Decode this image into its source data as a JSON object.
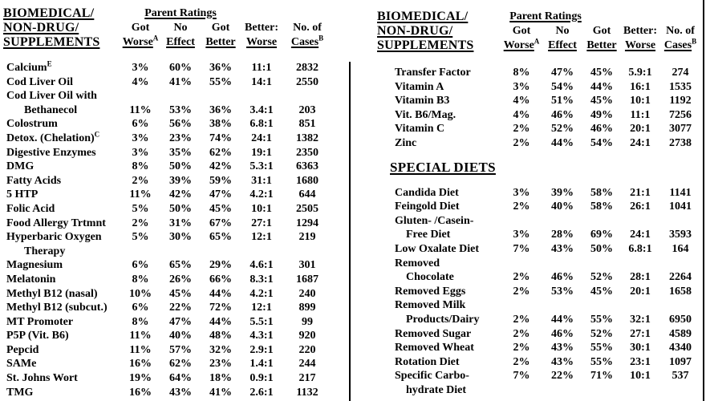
{
  "page": {
    "background": "#ffffff",
    "text_color": "#000000"
  },
  "left_table": {
    "title_lines": [
      "BIOMEDICAL/",
      "NON-DRUG/",
      "SUPPLEMENTS"
    ],
    "parent_ratings_label": "Parent Ratings",
    "columns": [
      {
        "l1": "Got",
        "l2": "Worse",
        "sup": "A"
      },
      {
        "l1": "No",
        "l2": "Effect",
        "sup": ""
      },
      {
        "l1": "Got",
        "l2": "Better",
        "sup": ""
      },
      {
        "l1": "Better:",
        "l2": "Worse",
        "sup": ""
      },
      {
        "l1": "No. of",
        "l2": "Cases",
        "sup": "B"
      }
    ],
    "rows": [
      {
        "label": "Calcium",
        "sup": "E",
        "ind": false,
        "worse": "3%",
        "effect": "60%",
        "better": "36%",
        "ratio": "11:1",
        "cases": "2832"
      },
      {
        "label": "Cod Liver Oil",
        "sup": "",
        "ind": false,
        "worse": "4%",
        "effect": "41%",
        "better": "55%",
        "ratio": "14:1",
        "cases": "2550"
      },
      {
        "label": "Cod Liver Oil with",
        "sup": "",
        "ind": false,
        "worse": "",
        "effect": "",
        "better": "",
        "ratio": "",
        "cases": ""
      },
      {
        "label": "Bethanecol",
        "sup": "",
        "ind": true,
        "worse": "11%",
        "effect": "53%",
        "better": "36%",
        "ratio": "3.4:1",
        "cases": "203"
      },
      {
        "label": "Colostrum",
        "sup": "",
        "ind": false,
        "worse": "6%",
        "effect": "56%",
        "better": "38%",
        "ratio": "6.8:1",
        "cases": "851"
      },
      {
        "label": "Detox. (Chelation)",
        "sup": "C",
        "ind": false,
        "worse": "3%",
        "effect": "23%",
        "better": "74%",
        "ratio": "24:1",
        "cases": "1382"
      },
      {
        "label": "Digestive Enzymes",
        "sup": "",
        "ind": false,
        "worse": "3%",
        "effect": "35%",
        "better": "62%",
        "ratio": "19:1",
        "cases": "2350"
      },
      {
        "label": "DMG",
        "sup": "",
        "ind": false,
        "worse": "8%",
        "effect": "50%",
        "better": "42%",
        "ratio": "5.3:1",
        "cases": "6363"
      },
      {
        "label": "Fatty Acids",
        "sup": "",
        "ind": false,
        "worse": "2%",
        "effect": "39%",
        "better": "59%",
        "ratio": "31:1",
        "cases": "1680"
      },
      {
        "label": "5 HTP",
        "sup": "",
        "ind": false,
        "worse": "11%",
        "effect": "42%",
        "better": "47%",
        "ratio": "4.2:1",
        "cases": "644"
      },
      {
        "label": "Folic Acid",
        "sup": "",
        "ind": false,
        "worse": "5%",
        "effect": "50%",
        "better": "45%",
        "ratio": "10:1",
        "cases": "2505"
      },
      {
        "label": "Food Allergy Trtmnt",
        "sup": "",
        "ind": false,
        "worse": "2%",
        "effect": "31%",
        "better": "67%",
        "ratio": "27:1",
        "cases": "1294"
      },
      {
        "label": "Hyperbaric Oxygen",
        "sup": "",
        "ind": false,
        "worse": "5%",
        "effect": "30%",
        "better": "65%",
        "ratio": "12:1",
        "cases": "219"
      },
      {
        "label": "Therapy",
        "sup": "",
        "ind": true,
        "worse": "",
        "effect": "",
        "better": "",
        "ratio": "",
        "cases": ""
      },
      {
        "label": "Magnesium",
        "sup": "",
        "ind": false,
        "worse": "6%",
        "effect": "65%",
        "better": "29%",
        "ratio": "4.6:1",
        "cases": "301"
      },
      {
        "label": "Melatonin",
        "sup": "",
        "ind": false,
        "worse": "8%",
        "effect": "26%",
        "better": "66%",
        "ratio": "8.3:1",
        "cases": "1687"
      },
      {
        "label": "Methyl B12 (nasal)",
        "sup": "",
        "ind": false,
        "worse": "10%",
        "effect": "45%",
        "better": "44%",
        "ratio": "4.2:1",
        "cases": "240"
      },
      {
        "label": "Methyl B12 (subcut.)",
        "sup": "",
        "ind": false,
        "worse": "6%",
        "effect": "22%",
        "better": "72%",
        "ratio": "12:1",
        "cases": "899"
      },
      {
        "label": "MT Promoter",
        "sup": "",
        "ind": false,
        "worse": "8%",
        "effect": "47%",
        "better": "44%",
        "ratio": "5.5:1",
        "cases": "99"
      },
      {
        "label": "P5P (Vit. B6)",
        "sup": "",
        "ind": false,
        "worse": "11%",
        "effect": "40%",
        "better": "48%",
        "ratio": "4.3:1",
        "cases": "920"
      },
      {
        "label": "Pepcid",
        "sup": "",
        "ind": false,
        "worse": "11%",
        "effect": "57%",
        "better": "32%",
        "ratio": "2.9:1",
        "cases": "220"
      },
      {
        "label": "SAMe",
        "sup": "",
        "ind": false,
        "worse": "16%",
        "effect": "62%",
        "better": "23%",
        "ratio": "1.4:1",
        "cases": "244"
      },
      {
        "label": "St. Johns Wort",
        "sup": "",
        "ind": false,
        "worse": "19%",
        "effect": "64%",
        "better": "18%",
        "ratio": "0.9:1",
        "cases": "217"
      },
      {
        "label": "TMG",
        "sup": "",
        "ind": false,
        "worse": "16%",
        "effect": "43%",
        "better": "41%",
        "ratio": "2.6:1",
        "cases": "1132"
      }
    ]
  },
  "right_table": {
    "title_lines": [
      "BIOMEDICAL/",
      "NON-DRUG/",
      "SUPPLEMENTS"
    ],
    "parent_ratings_label": "Parent Ratings",
    "columns": [
      {
        "l1": "Got",
        "l2": "Worse",
        "sup": "A"
      },
      {
        "l1": "No",
        "l2": "Effect",
        "sup": ""
      },
      {
        "l1": "Got",
        "l2": "Better",
        "sup": ""
      },
      {
        "l1": "Better:",
        "l2": "Worse",
        "sup": ""
      },
      {
        "l1": "No. of",
        "l2": "Cases",
        "sup": "B"
      }
    ],
    "supplement_rows": [
      {
        "label": "Transfer Factor",
        "sup": "",
        "ind": false,
        "worse": "8%",
        "effect": "47%",
        "better": "45%",
        "ratio": "5.9:1",
        "cases": "274"
      },
      {
        "label": "Vitamin A",
        "sup": "",
        "ind": false,
        "worse": "3%",
        "effect": "54%",
        "better": "44%",
        "ratio": "16:1",
        "cases": "1535"
      },
      {
        "label": "Vitamin B3",
        "sup": "",
        "ind": false,
        "worse": "4%",
        "effect": "51%",
        "better": "45%",
        "ratio": "10:1",
        "cases": "1192"
      },
      {
        "label": "Vit. B6/Mag.",
        "sup": "",
        "ind": false,
        "worse": "4%",
        "effect": "46%",
        "better": "49%",
        "ratio": "11:1",
        "cases": "7256"
      },
      {
        "label": "Vitamin C",
        "sup": "",
        "ind": false,
        "worse": "2%",
        "effect": "52%",
        "better": "46%",
        "ratio": "20:1",
        "cases": "3077"
      },
      {
        "label": "Zinc",
        "sup": "",
        "ind": false,
        "worse": "2%",
        "effect": "44%",
        "better": "54%",
        "ratio": "24:1",
        "cases": "2738"
      }
    ],
    "special_diets_heading": "SPECIAL DIETS",
    "diet_rows": [
      {
        "label": "Candida Diet",
        "sup": "",
        "ind": false,
        "worse": "3%",
        "effect": "39%",
        "better": "58%",
        "ratio": "21:1",
        "cases": "1141"
      },
      {
        "label": "Feingold Diet",
        "sup": "",
        "ind": false,
        "worse": "2%",
        "effect": "40%",
        "better": "58%",
        "ratio": "26:1",
        "cases": "1041"
      },
      {
        "label": "Gluten- /Casein-",
        "sup": "",
        "ind": false,
        "worse": "",
        "effect": "",
        "better": "",
        "ratio": "",
        "cases": ""
      },
      {
        "label": "Free Diet",
        "sup": "",
        "ind": true,
        "worse": "3%",
        "effect": "28%",
        "better": "69%",
        "ratio": "24:1",
        "cases": "3593"
      },
      {
        "label": "Low Oxalate Diet",
        "sup": "",
        "ind": false,
        "worse": "7%",
        "effect": "43%",
        "better": "50%",
        "ratio": "6.8:1",
        "cases": "164"
      },
      {
        "label": "Removed",
        "sup": "",
        "ind": false,
        "worse": "",
        "effect": "",
        "better": "",
        "ratio": "",
        "cases": ""
      },
      {
        "label": "Chocolate",
        "sup": "",
        "ind": true,
        "worse": "2%",
        "effect": "46%",
        "better": "52%",
        "ratio": "28:1",
        "cases": "2264"
      },
      {
        "label": "Removed Eggs",
        "sup": "",
        "ind": false,
        "worse": "2%",
        "effect": "53%",
        "better": "45%",
        "ratio": "20:1",
        "cases": "1658"
      },
      {
        "label": "Removed Milk",
        "sup": "",
        "ind": false,
        "worse": "",
        "effect": "",
        "better": "",
        "ratio": "",
        "cases": ""
      },
      {
        "label": "Products/Dairy",
        "sup": "",
        "ind": true,
        "worse": "2%",
        "effect": "44%",
        "better": "55%",
        "ratio": "32:1",
        "cases": "6950"
      },
      {
        "label": "Removed Sugar",
        "sup": "",
        "ind": false,
        "worse": "2%",
        "effect": "46%",
        "better": "52%",
        "ratio": "27:1",
        "cases": "4589"
      },
      {
        "label": "Removed Wheat",
        "sup": "",
        "ind": false,
        "worse": "2%",
        "effect": "43%",
        "better": "55%",
        "ratio": "30:1",
        "cases": "4340"
      },
      {
        "label": "Rotation Diet",
        "sup": "",
        "ind": false,
        "worse": "2%",
        "effect": "43%",
        "better": "55%",
        "ratio": "23:1",
        "cases": "1097"
      },
      {
        "label": "Specific Carbo-",
        "sup": "",
        "ind": false,
        "worse": "7%",
        "effect": "22%",
        "better": "71%",
        "ratio": "10:1",
        "cases": "537"
      },
      {
        "label": "hydrate Diet",
        "sup": "",
        "ind": true,
        "worse": "",
        "effect": "",
        "better": "",
        "ratio": "",
        "cases": ""
      }
    ]
  }
}
